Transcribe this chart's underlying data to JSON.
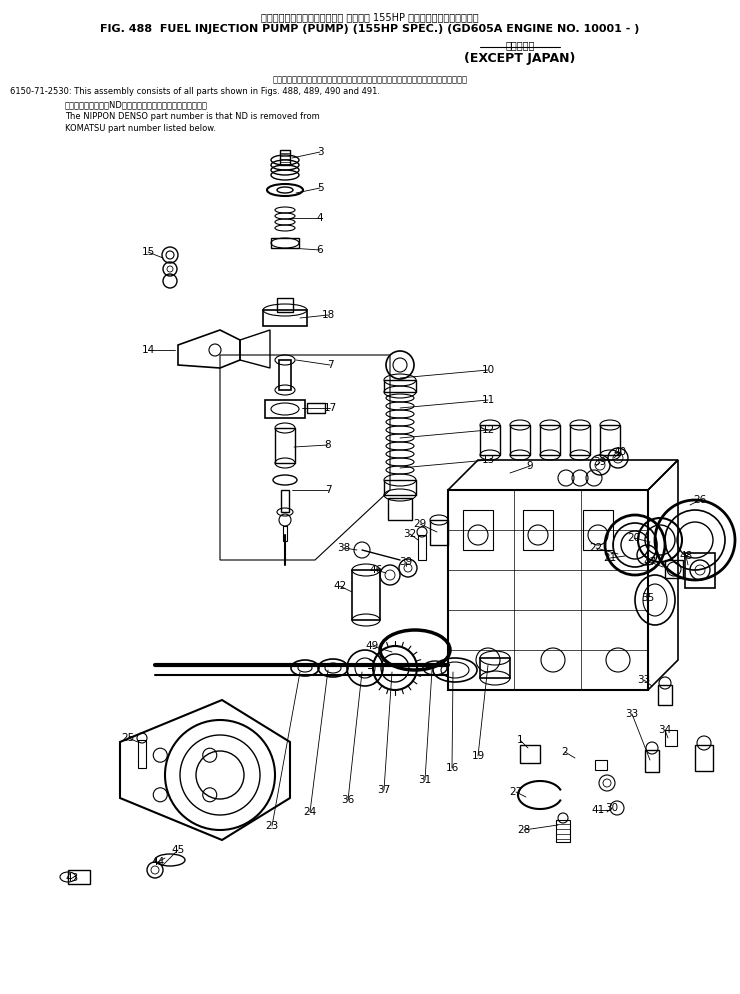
{
  "title_line1_jp": "フェルインジェクションポンプ ポンプ　 155HP 仕様　　　　　　適用号機",
  "title_line2": "FIG. 488  FUEL INJECTION PUMP (PUMP) (155HP SPEC.) (GD605A ENGINE NO. 10001 - )",
  "subtitle_jp": "海　外　向",
  "subtitle_en": "(EXCEPT JAPAN)",
  "note_line1_jp": "このアセンブリの構成部品は第４８８、４８９、４９０および第４９１図を含みます。",
  "note_line2": "6150-71-2530: This assembly consists of all parts shown in Figs. 488, 489, 490 and 491.",
  "note_line3_jp": "品番のメーカー記号NDを除いたものが日本電装の品番です。",
  "note_line4": "The NIPPON DENSO part number is that ND is removed from",
  "note_line5": "KOMATSU part number listed below.",
  "background_color": "#ffffff",
  "line_color": "#000000",
  "text_color": "#000000",
  "fig_width": 7.4,
  "fig_height": 9.94,
  "dpi": 100
}
